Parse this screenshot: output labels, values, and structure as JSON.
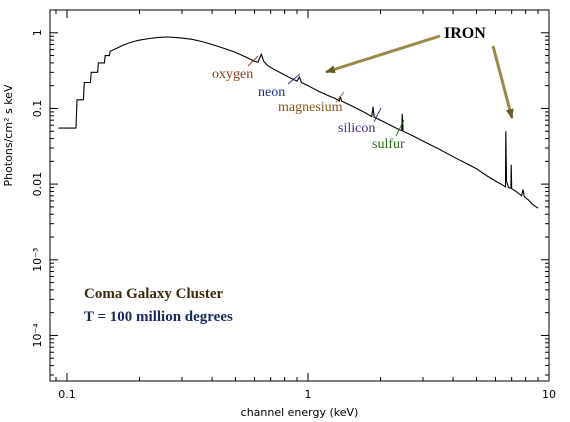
{
  "chart_data": {
    "type": "line",
    "xlabel": "channel energy (keV)",
    "ylabel": "Photons/cm² s keV",
    "xscale": "log",
    "yscale": "log",
    "xlim": [
      0.085,
      10
    ],
    "ylim": [
      2.5e-05,
      2
    ],
    "x_ticks": [
      {
        "value": 0.1,
        "label": "0.1"
      },
      {
        "value": 1,
        "label": "1"
      },
      {
        "value": 10,
        "label": "10"
      }
    ],
    "y_ticks": [
      {
        "value": 1,
        "label": "1"
      },
      {
        "value": 0.1,
        "label": "0.1"
      },
      {
        "value": 0.01,
        "label": "0.01"
      },
      {
        "value": 0.001,
        "label": "10⁻³"
      },
      {
        "value": 0.0001,
        "label": "10⁻⁴"
      }
    ],
    "series": [
      {
        "color": "#000000",
        "points": [
          [
            0.1,
            0.055
          ],
          [
            0.109,
            0.055
          ],
          [
            0.11,
            0.13
          ],
          [
            0.117,
            0.13
          ],
          [
            0.118,
            0.22
          ],
          [
            0.125,
            0.22
          ],
          [
            0.126,
            0.3
          ],
          [
            0.134,
            0.3
          ],
          [
            0.135,
            0.4
          ],
          [
            0.143,
            0.4
          ],
          [
            0.144,
            0.5
          ],
          [
            0.15,
            0.5
          ],
          [
            0.151,
            0.57
          ],
          [
            0.16,
            0.62
          ],
          [
            0.17,
            0.68
          ],
          [
            0.18,
            0.73
          ],
          [
            0.19,
            0.77
          ],
          [
            0.2,
            0.8
          ],
          [
            0.22,
            0.84
          ],
          [
            0.24,
            0.87
          ],
          [
            0.26,
            0.88
          ],
          [
            0.28,
            0.87
          ],
          [
            0.3,
            0.85
          ],
          [
            0.33,
            0.82
          ],
          [
            0.36,
            0.77
          ],
          [
            0.4,
            0.7
          ],
          [
            0.45,
            0.62
          ],
          [
            0.5,
            0.55
          ],
          [
            0.55,
            0.48
          ],
          [
            0.6,
            0.42
          ],
          [
            0.62,
            0.41
          ],
          [
            0.64,
            0.52
          ],
          [
            0.655,
            0.42
          ],
          [
            0.68,
            0.37
          ],
          [
            0.72,
            0.33
          ],
          [
            0.78,
            0.29
          ],
          [
            0.85,
            0.25
          ],
          [
            0.9,
            0.23
          ],
          [
            0.92,
            0.26
          ],
          [
            0.94,
            0.22
          ],
          [
            1.0,
            0.2
          ],
          [
            1.1,
            0.17
          ],
          [
            1.2,
            0.15
          ],
          [
            1.3,
            0.135
          ],
          [
            1.35,
            0.125
          ],
          [
            1.36,
            0.145
          ],
          [
            1.38,
            0.125
          ],
          [
            1.5,
            0.11
          ],
          [
            1.7,
            0.09
          ],
          [
            1.84,
            0.078
          ],
          [
            1.86,
            0.105
          ],
          [
            1.88,
            0.077
          ],
          [
            2.0,
            0.07
          ],
          [
            2.2,
            0.06
          ],
          [
            2.4,
            0.052
          ],
          [
            2.45,
            0.051
          ],
          [
            2.46,
            0.085
          ],
          [
            2.48,
            0.05
          ],
          [
            2.7,
            0.044
          ],
          [
            3.0,
            0.037
          ],
          [
            3.5,
            0.029
          ],
          [
            4.0,
            0.023
          ],
          [
            4.5,
            0.019
          ],
          [
            5.0,
            0.016
          ],
          [
            5.5,
            0.013
          ],
          [
            6.0,
            0.011
          ],
          [
            6.5,
            0.0095
          ],
          [
            6.6,
            0.0092
          ],
          [
            6.62,
            0.05
          ],
          [
            6.66,
            0.011
          ],
          [
            6.8,
            0.009
          ],
          [
            6.95,
            0.0088
          ],
          [
            6.97,
            0.018
          ],
          [
            7.0,
            0.0087
          ],
          [
            7.3,
            0.008
          ],
          [
            7.7,
            0.007
          ],
          [
            7.8,
            0.0085
          ],
          [
            7.9,
            0.0068
          ],
          [
            8.2,
            0.0062
          ],
          [
            8.5,
            0.0055
          ],
          [
            9.0,
            0.0048
          ]
        ]
      }
    ],
    "annotations": [
      {
        "text": "oxygen",
        "color": "#8b3a1a"
      },
      {
        "text": "neon",
        "color": "#1c2e8c"
      },
      {
        "text": "magnesium",
        "color": "#8a5a1a"
      },
      {
        "text": "silicon",
        "color": "#4a2a8a"
      },
      {
        "text": "sulfur",
        "color": "#2e6b1e"
      },
      {
        "text": "IRON",
        "color": "#000000"
      },
      {
        "text": "Coma Galaxy Cluster",
        "color": "#3a2a0a"
      },
      {
        "text": "T = 100 million degrees",
        "color": "#1a2a5a"
      }
    ]
  }
}
